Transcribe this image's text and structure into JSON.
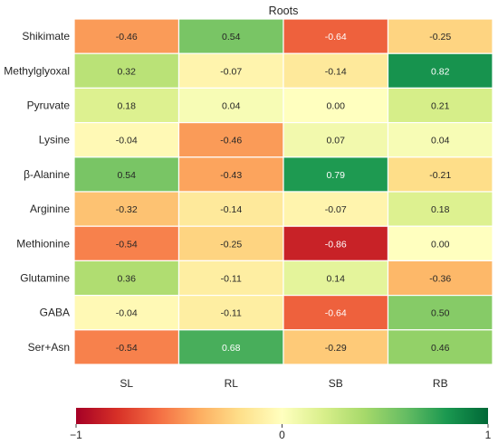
{
  "chart_data": {
    "type": "heatmap",
    "title": "Roots",
    "rows": [
      "Shikimate",
      "Methylglyoxal",
      "Pyruvate",
      "Lysine",
      "β-Alanine",
      "Arginine",
      "Methionine",
      "Glutamine",
      "GABA",
      "Ser+Asn"
    ],
    "columns": [
      "SL",
      "RL",
      "SB",
      "RB"
    ],
    "values": [
      [
        -0.46,
        0.54,
        -0.64,
        -0.25
      ],
      [
        0.32,
        -0.07,
        -0.14,
        0.82
      ],
      [
        0.18,
        0.04,
        0.0,
        0.21
      ],
      [
        -0.04,
        -0.46,
        0.07,
        0.04
      ],
      [
        0.54,
        -0.43,
        0.79,
        -0.21
      ],
      [
        -0.32,
        -0.14,
        -0.07,
        0.18
      ],
      [
        -0.54,
        -0.25,
        -0.86,
        0.0
      ],
      [
        0.36,
        -0.11,
        0.14,
        -0.36
      ],
      [
        -0.04,
        -0.11,
        -0.64,
        0.5
      ],
      [
        -0.54,
        0.68,
        -0.29,
        0.46
      ]
    ],
    "colorbar": {
      "colormap": "RdYlGn",
      "range": [
        -1,
        1
      ],
      "ticks": [
        {
          "value": -1,
          "label": "−1"
        },
        {
          "value": 0,
          "label": "0"
        },
        {
          "value": 1,
          "label": "1"
        }
      ],
      "orientation": "horizontal",
      "position": "bottom"
    },
    "colors": {
      "stops": [
        "#a50026",
        "#d73027",
        "#f46d43",
        "#fdae61",
        "#fee08b",
        "#ffffbf",
        "#d9ef8b",
        "#a6d96a",
        "#66bd63",
        "#1a9850",
        "#006837"
      ],
      "cell_border": "#ffffff"
    }
  }
}
